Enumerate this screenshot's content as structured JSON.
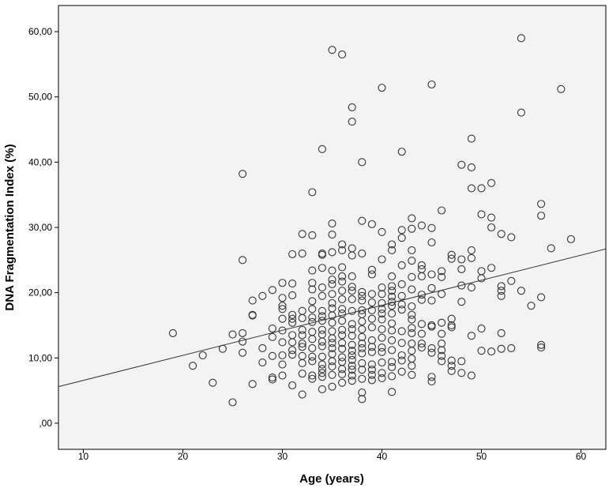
{
  "chart_data": {
    "type": "scatter",
    "title": "",
    "xlabel": "Age (years)",
    "ylabel": "DNA Fragmentation Index (%)",
    "xlim": [
      7.5,
      62.5
    ],
    "ylim": [
      -4,
      64
    ],
    "xticks": [
      {
        "value": 10,
        "label": "10"
      },
      {
        "value": 20,
        "label": "20"
      },
      {
        "value": 30,
        "label": "30"
      },
      {
        "value": 40,
        "label": "40"
      },
      {
        "value": 50,
        "label": "50"
      },
      {
        "value": 60,
        "label": "60"
      }
    ],
    "yticks": [
      {
        "value": 0,
        "label": ",00"
      },
      {
        "value": 10,
        "label": "10,00"
      },
      {
        "value": 20,
        "label": "20,00"
      },
      {
        "value": 30,
        "label": "30,00"
      },
      {
        "value": 40,
        "label": "40,00"
      },
      {
        "value": 50,
        "label": "50,00"
      },
      {
        "value": 60,
        "label": "60,00"
      }
    ],
    "grid": false,
    "legend": "none",
    "colors": {
      "plot_background": "#f3f3f3",
      "marker": "#333333",
      "fit_line": "#333333"
    },
    "fit_line": {
      "x": [
        7.5,
        62.5
      ],
      "y": [
        5.6,
        26.7
      ]
    },
    "points": [
      [
        19,
        13.8
      ],
      [
        21,
        8.8
      ],
      [
        22,
        10.4
      ],
      [
        23,
        6.2
      ],
      [
        24,
        11.4
      ],
      [
        25,
        13.6
      ],
      [
        25,
        3.2
      ],
      [
        26,
        38.2
      ],
      [
        26,
        25
      ],
      [
        26,
        13.8
      ],
      [
        26,
        12.5
      ],
      [
        26,
        10.8
      ],
      [
        27,
        16.6
      ],
      [
        27,
        16.5
      ],
      [
        27,
        6
      ],
      [
        27,
        18.8
      ],
      [
        28,
        19.5
      ],
      [
        28,
        11.5
      ],
      [
        28,
        9.3
      ],
      [
        29,
        20.4
      ],
      [
        29,
        14.5
      ],
      [
        29,
        13.2
      ],
      [
        29,
        10.3
      ],
      [
        29,
        7
      ],
      [
        29,
        6.7
      ],
      [
        30,
        21.5
      ],
      [
        30,
        19.2
      ],
      [
        30,
        18
      ],
      [
        30,
        17.5
      ],
      [
        30,
        16
      ],
      [
        30,
        14.2
      ],
      [
        30,
        12.4
      ],
      [
        30,
        10.4
      ],
      [
        30,
        9
      ],
      [
        30,
        7.3
      ],
      [
        31,
        21.4
      ],
      [
        31,
        19.6
      ],
      [
        31,
        16.6
      ],
      [
        31,
        16
      ],
      [
        31,
        15.4
      ],
      [
        31,
        13.5
      ],
      [
        31,
        12.4
      ],
      [
        31,
        11.2
      ],
      [
        31,
        10.5
      ],
      [
        31,
        5.8
      ],
      [
        31,
        25.9
      ],
      [
        32,
        29
      ],
      [
        32,
        26
      ],
      [
        32,
        17.2
      ],
      [
        32,
        16.1
      ],
      [
        32,
        14.3
      ],
      [
        32,
        13.5
      ],
      [
        32,
        12.2
      ],
      [
        32,
        11.7
      ],
      [
        32,
        10.3
      ],
      [
        32,
        9.2
      ],
      [
        32,
        7.6
      ],
      [
        32,
        4.4
      ],
      [
        33,
        35.4
      ],
      [
        33,
        28.8
      ],
      [
        33,
        23.4
      ],
      [
        33,
        21.5
      ],
      [
        33,
        20.5
      ],
      [
        33,
        18.7
      ],
      [
        33,
        17.5
      ],
      [
        33,
        16.2
      ],
      [
        33,
        15.5
      ],
      [
        33,
        14
      ],
      [
        33,
        12.9
      ],
      [
        33,
        11.5
      ],
      [
        33,
        10.2
      ],
      [
        33,
        9.5
      ],
      [
        33,
        7.3
      ],
      [
        33,
        6.8
      ],
      [
        34,
        42
      ],
      [
        34,
        26
      ],
      [
        34,
        25.8
      ],
      [
        34,
        23.8
      ],
      [
        34,
        20.8
      ],
      [
        34,
        19.5
      ],
      [
        34,
        17.2
      ],
      [
        34,
        16.4
      ],
      [
        34,
        15.7
      ],
      [
        34,
        14.3
      ],
      [
        34,
        13.6
      ],
      [
        34,
        12.5
      ],
      [
        34,
        11.8
      ],
      [
        34,
        10.2
      ],
      [
        34,
        9
      ],
      [
        34,
        8.3
      ],
      [
        34,
        7.7
      ],
      [
        34,
        7.1
      ],
      [
        34,
        5.2
      ],
      [
        35,
        57.2
      ],
      [
        35,
        30.6
      ],
      [
        35,
        28.9
      ],
      [
        35,
        26.2
      ],
      [
        35,
        23.4
      ],
      [
        35,
        22
      ],
      [
        35,
        21.3
      ],
      [
        35,
        19.8
      ],
      [
        35,
        18.4
      ],
      [
        35,
        17.6
      ],
      [
        35,
        16.5
      ],
      [
        35,
        15.4
      ],
      [
        35,
        14.1
      ],
      [
        35,
        13
      ],
      [
        35,
        12.3
      ],
      [
        35,
        11.5
      ],
      [
        35,
        10.6
      ],
      [
        35,
        9.5
      ],
      [
        35,
        8.7
      ],
      [
        35,
        7.4
      ],
      [
        35,
        5.6
      ],
      [
        36,
        56.5
      ],
      [
        36,
        27.4
      ],
      [
        36,
        26.5
      ],
      [
        36,
        23.9
      ],
      [
        36,
        22.5
      ],
      [
        36,
        21.7
      ],
      [
        36,
        20.3
      ],
      [
        36,
        19
      ],
      [
        36,
        17.5
      ],
      [
        36,
        16.8
      ],
      [
        36,
        15.7
      ],
      [
        36,
        14.3
      ],
      [
        36,
        13.5
      ],
      [
        36,
        12.3
      ],
      [
        36,
        11.4
      ],
      [
        36,
        10.1
      ],
      [
        36,
        9.4
      ],
      [
        36,
        8.3
      ],
      [
        36,
        7.5
      ],
      [
        36,
        6.2
      ],
      [
        37,
        48.4
      ],
      [
        37,
        46.2
      ],
      [
        37,
        26.8
      ],
      [
        37,
        25.7
      ],
      [
        37,
        22.5
      ],
      [
        37,
        20.9
      ],
      [
        37,
        20.3
      ],
      [
        37,
        19
      ],
      [
        37,
        17.2
      ],
      [
        37,
        15.2
      ],
      [
        37,
        14.4
      ],
      [
        37,
        13.4
      ],
      [
        37,
        12
      ],
      [
        37,
        11.1
      ],
      [
        37,
        10.4
      ],
      [
        37,
        9.7
      ],
      [
        37,
        8.8
      ],
      [
        37,
        8.2
      ],
      [
        37,
        7.3
      ],
      [
        37,
        6.5
      ],
      [
        38,
        40
      ],
      [
        38,
        31
      ],
      [
        38,
        26
      ],
      [
        38,
        20.1
      ],
      [
        38,
        19.5
      ],
      [
        38,
        18.8
      ],
      [
        38,
        17.3
      ],
      [
        38,
        16.7
      ],
      [
        38,
        15.6
      ],
      [
        38,
        14.4
      ],
      [
        38,
        13.2
      ],
      [
        38,
        12.2
      ],
      [
        38,
        11.5
      ],
      [
        38,
        10.7
      ],
      [
        38,
        9.2
      ],
      [
        38,
        8.2
      ],
      [
        38,
        6.8
      ],
      [
        38,
        4.7
      ],
      [
        38,
        3.7
      ],
      [
        39,
        30.5
      ],
      [
        39,
        23.5
      ],
      [
        39,
        22.8
      ],
      [
        39,
        19.8
      ],
      [
        39,
        18.5
      ],
      [
        39,
        17.3
      ],
      [
        39,
        16
      ],
      [
        39,
        14.7
      ],
      [
        39,
        12.7
      ],
      [
        39,
        11.7
      ],
      [
        39,
        10.9
      ],
      [
        39,
        9
      ],
      [
        39,
        8.2
      ],
      [
        39,
        7.4
      ],
      [
        39,
        6.6
      ],
      [
        40,
        51.4
      ],
      [
        40,
        29.3
      ],
      [
        40,
        25.1
      ],
      [
        40,
        20.8
      ],
      [
        40,
        19.8
      ],
      [
        40,
        18.4
      ],
      [
        40,
        17.5
      ],
      [
        40,
        16.8
      ],
      [
        40,
        15.9
      ],
      [
        40,
        14.4
      ],
      [
        40,
        13.1
      ],
      [
        40,
        11.6
      ],
      [
        40,
        10.9
      ],
      [
        40,
        9.3
      ],
      [
        40,
        7.7
      ],
      [
        40,
        6.9
      ],
      [
        41,
        27.4
      ],
      [
        41,
        26.5
      ],
      [
        41,
        22.5
      ],
      [
        41,
        21
      ],
      [
        41,
        20.3
      ],
      [
        41,
        19.4
      ],
      [
        41,
        18.6
      ],
      [
        41,
        18
      ],
      [
        41,
        16.8
      ],
      [
        41,
        15.3
      ],
      [
        41,
        14.2
      ],
      [
        41,
        12.7
      ],
      [
        41,
        11.2
      ],
      [
        41,
        9.4
      ],
      [
        41,
        8.6
      ],
      [
        41,
        7.2
      ],
      [
        41,
        4.8
      ],
      [
        42,
        41.6
      ],
      [
        42,
        29.6
      ],
      [
        42,
        28.4
      ],
      [
        42,
        24.2
      ],
      [
        42,
        21.3
      ],
      [
        42,
        19.5
      ],
      [
        42,
        18.2
      ],
      [
        42,
        17.4
      ],
      [
        42,
        14.1
      ],
      [
        42,
        12.3
      ],
      [
        42,
        10.4
      ],
      [
        42,
        9.6
      ],
      [
        42,
        7.9
      ],
      [
        43,
        31.4
      ],
      [
        43,
        29.8
      ],
      [
        43,
        26.5
      ],
      [
        43,
        24.9
      ],
      [
        43,
        22.4
      ],
      [
        43,
        20.5
      ],
      [
        43,
        17.9
      ],
      [
        43,
        16.6
      ],
      [
        43,
        15.9
      ],
      [
        43,
        14.6
      ],
      [
        43,
        13.8
      ],
      [
        43,
        12.2
      ],
      [
        43,
        11.1
      ],
      [
        43,
        9.9
      ],
      [
        43,
        8.8
      ],
      [
        43,
        7.4
      ],
      [
        44,
        30.3
      ],
      [
        44,
        24.2
      ],
      [
        44,
        23.6
      ],
      [
        44,
        22.5
      ],
      [
        44,
        19.7
      ],
      [
        44,
        18.9
      ],
      [
        44,
        15.2
      ],
      [
        44,
        13.7
      ],
      [
        44,
        12.2
      ],
      [
        44,
        11.6
      ],
      [
        45,
        51.9
      ],
      [
        45,
        29.9
      ],
      [
        45,
        27.7
      ],
      [
        45,
        22.8
      ],
      [
        45,
        20.7
      ],
      [
        45,
        18.8
      ],
      [
        45,
        15
      ],
      [
        45,
        14.8
      ],
      [
        45,
        11.5
      ],
      [
        45,
        10.8
      ],
      [
        45,
        7.1
      ],
      [
        45,
        6.4
      ],
      [
        46,
        32.6
      ],
      [
        46,
        23.3
      ],
      [
        46,
        22.4
      ],
      [
        46,
        19.8
      ],
      [
        46,
        15.4
      ],
      [
        46,
        13.7
      ],
      [
        46,
        12.2
      ],
      [
        46,
        11.2
      ],
      [
        46,
        10.3
      ],
      [
        46,
        9.5
      ],
      [
        47,
        25.8
      ],
      [
        47,
        25.2
      ],
      [
        47,
        16
      ],
      [
        47,
        15
      ],
      [
        47,
        14.7
      ],
      [
        47,
        9.6
      ],
      [
        47,
        8.8
      ],
      [
        47,
        8
      ],
      [
        48,
        39.6
      ],
      [
        48,
        25.1
      ],
      [
        48,
        23.6
      ],
      [
        48,
        21.1
      ],
      [
        48,
        18.6
      ],
      [
        48,
        9.5
      ],
      [
        48,
        7.7
      ],
      [
        49,
        43.6
      ],
      [
        49,
        39.2
      ],
      [
        49,
        36
      ],
      [
        49,
        26.5
      ],
      [
        49,
        25.3
      ],
      [
        49,
        20.8
      ],
      [
        49,
        13.4
      ],
      [
        49,
        7.3
      ],
      [
        50,
        36
      ],
      [
        50,
        32
      ],
      [
        50,
        23.3
      ],
      [
        50,
        22.2
      ],
      [
        50,
        14.5
      ],
      [
        50,
        11.1
      ],
      [
        51,
        36.8
      ],
      [
        51,
        31.5
      ],
      [
        51,
        30
      ],
      [
        51,
        23.8
      ],
      [
        51,
        11
      ],
      [
        52,
        29
      ],
      [
        52,
        21
      ],
      [
        52,
        20.3
      ],
      [
        52,
        19.5
      ],
      [
        52,
        13.8
      ],
      [
        52,
        11.4
      ],
      [
        53,
        28.5
      ],
      [
        53,
        21.8
      ],
      [
        53,
        11.5
      ],
      [
        54,
        59
      ],
      [
        54,
        47.6
      ],
      [
        54,
        20.3
      ],
      [
        55,
        18
      ],
      [
        56,
        33.6
      ],
      [
        56,
        31.8
      ],
      [
        56,
        19.3
      ],
      [
        56,
        12
      ],
      [
        56,
        11.6
      ],
      [
        57,
        26.8
      ],
      [
        58,
        51.2
      ],
      [
        59,
        28.2
      ]
    ]
  }
}
